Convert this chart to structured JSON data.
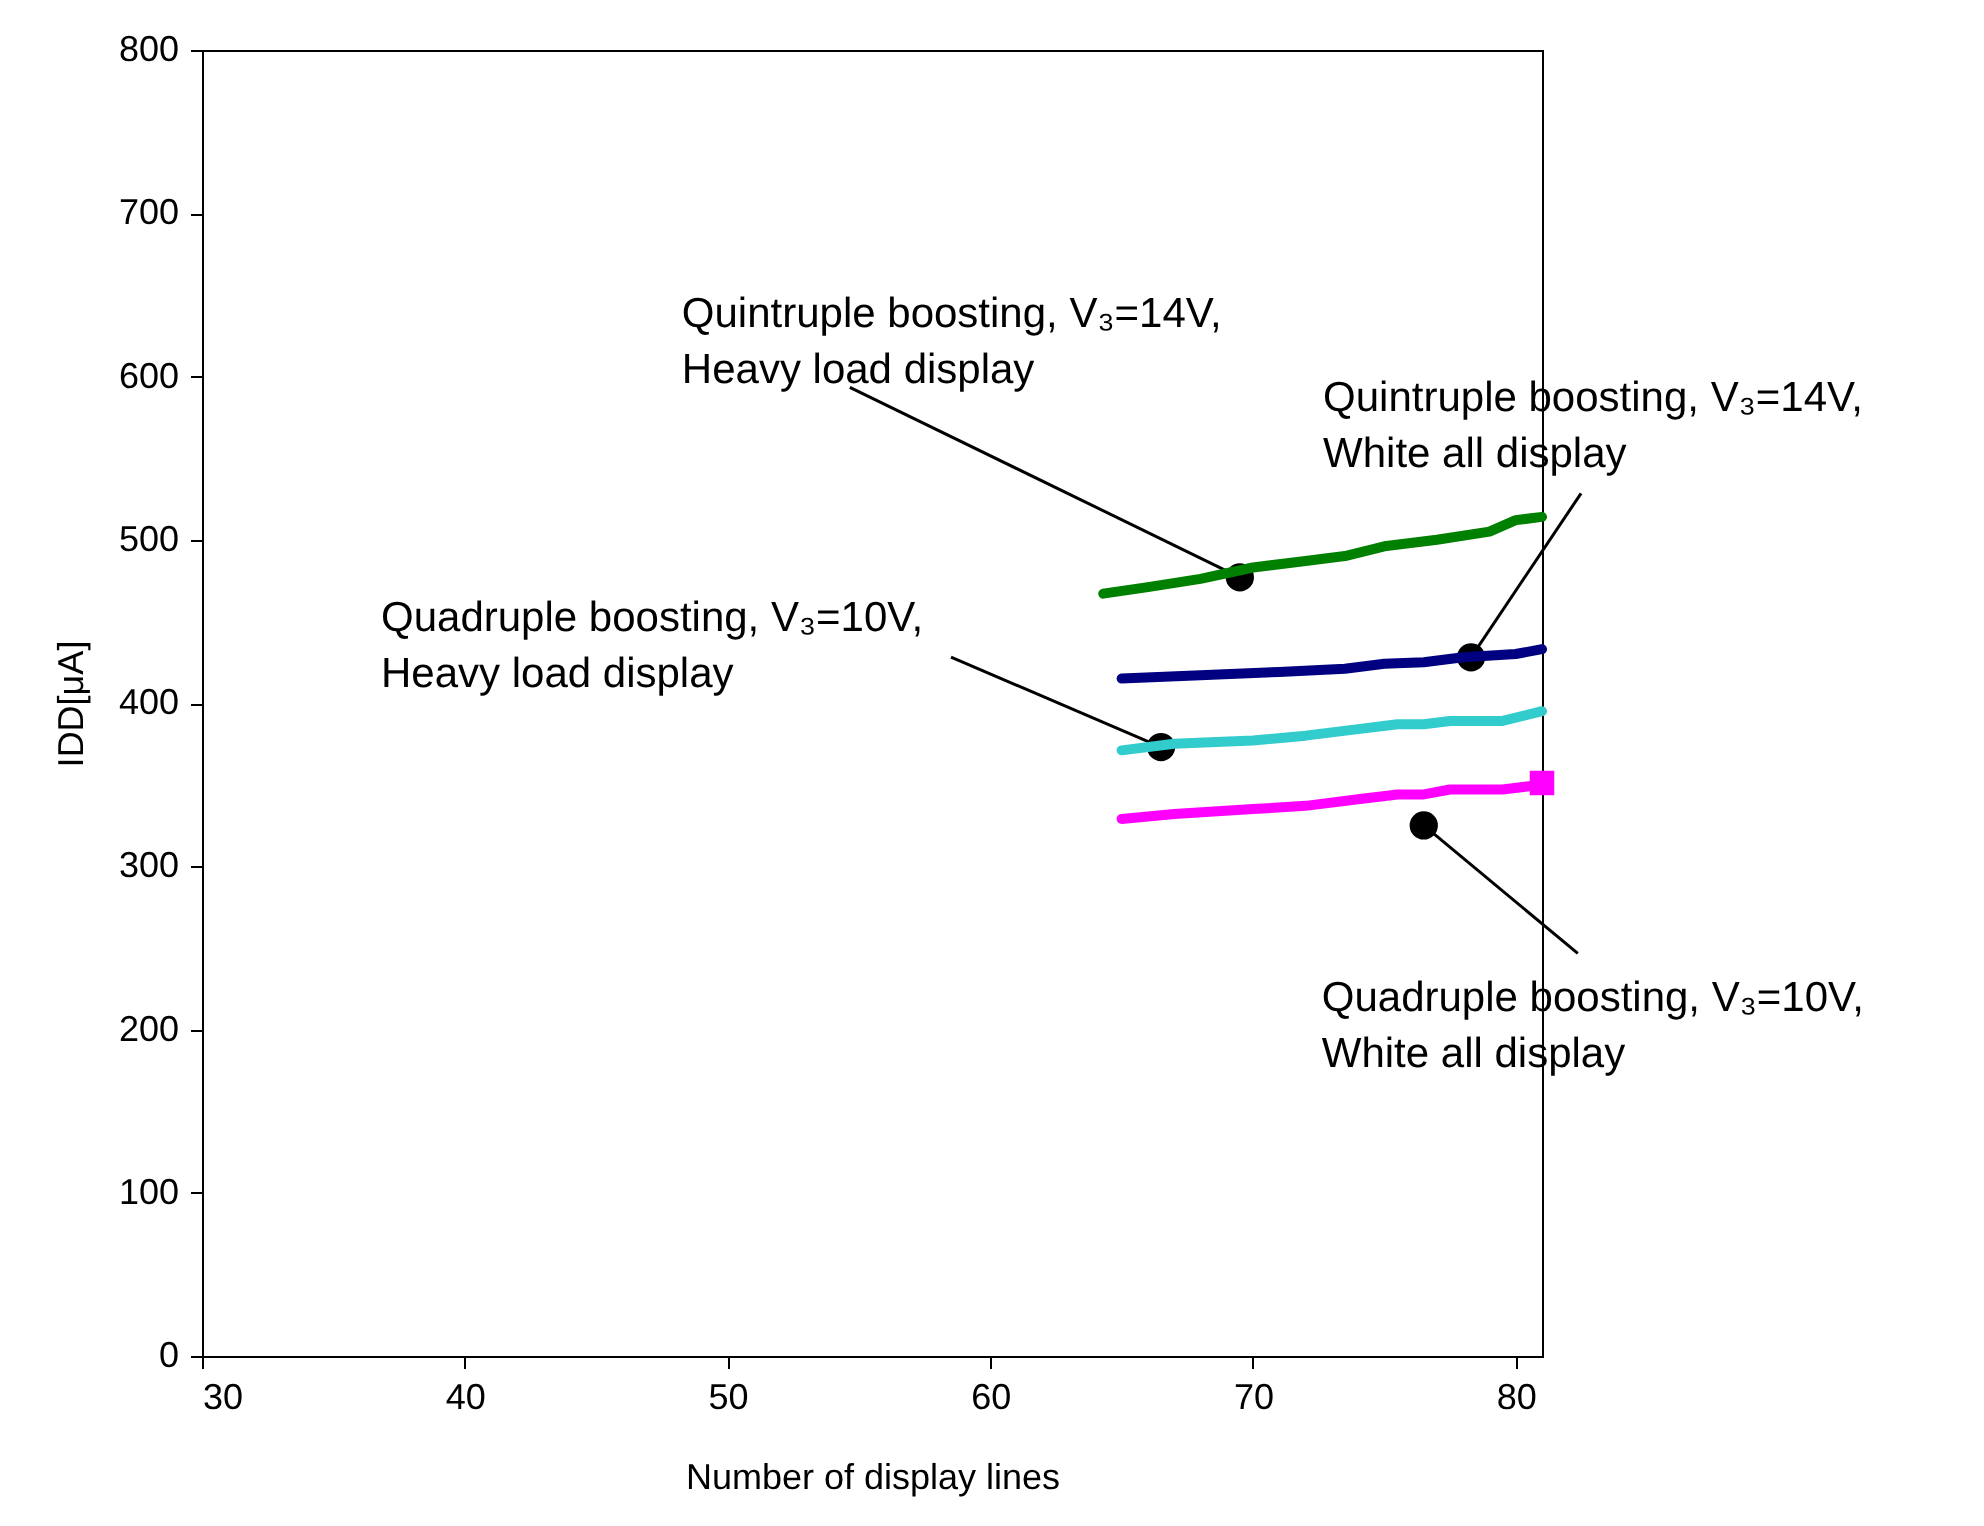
{
  "chart_data": {
    "type": "line",
    "xlabel": "Number of display lines",
    "ylabel": "IDD[μA]",
    "xlim": [
      30,
      81
    ],
    "xticks": [
      30,
      40,
      50,
      60,
      70,
      80
    ],
    "ylim": [
      0,
      800
    ],
    "yticks": [
      0,
      100,
      200,
      300,
      400,
      500,
      600,
      700,
      800
    ],
    "grid": false,
    "marker": "none",
    "line_style": "solid",
    "series": [
      {
        "color": "#008000",
        "x": [
          64.3,
          66,
          68,
          70,
          72,
          73.5,
          75,
          77,
          79,
          80,
          81
        ],
        "values": [
          467,
          471,
          476,
          483,
          487,
          490,
          496,
          500,
          505,
          512,
          514
        ]
      },
      {
        "color": "#000080",
        "x": [
          65,
          68,
          71,
          73.5,
          75,
          76.5,
          78,
          80,
          81
        ],
        "values": [
          415,
          417,
          419,
          421,
          424,
          425,
          428,
          430,
          433
        ]
      },
      {
        "color": "#33cccc",
        "x": [
          65,
          67,
          70,
          72,
          74,
          75.5,
          76.5,
          77.5,
          79.5,
          81
        ],
        "values": [
          371,
          375,
          377,
          380,
          384,
          387,
          387,
          389,
          389,
          395
        ]
      },
      {
        "color": "#ff00ff",
        "x": [
          65,
          67,
          70,
          72,
          74,
          75.5,
          76.5,
          77.5,
          79.5,
          81
        ],
        "values": [
          329,
          332,
          335,
          337,
          341,
          344,
          344,
          347,
          347,
          350
        ]
      },
      {
        "type": "scatter",
        "marker": "square",
        "color": "#ff00ff",
        "x": [
          81
        ],
        "values": [
          351
        ]
      }
    ],
    "annotations": [
      {
        "text": "Quintruple boosting, V₃=14V,\nHeavy load display",
        "x": 69.5,
        "y": 477
      },
      {
        "text": "Quintruple boosting, V₃=14V,\nWhite all display",
        "x": 78.3,
        "y": 428
      },
      {
        "text": "Quadruple boosting, V₃=10V,\nHeavy load display",
        "x": 66.5,
        "y": 373
      },
      {
        "text": "Quadruple boosting, V₃=10V,\nWhite all display",
        "x": 76.5,
        "y": 325
      }
    ]
  }
}
